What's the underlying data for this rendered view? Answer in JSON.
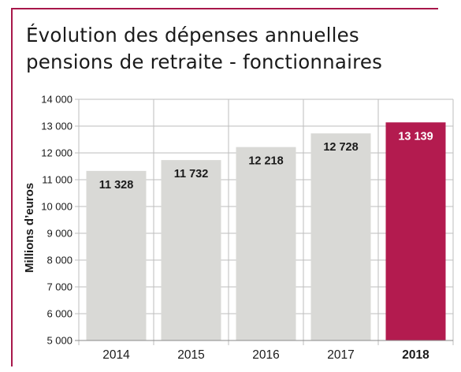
{
  "title": {
    "line1": "Évolution des dépenses annuelles",
    "line2": "pensions de retraite - fonctionnaires"
  },
  "colors": {
    "frame": "#a8174a",
    "bar_default": "#d9d9d6",
    "bar_highlight": "#b31b4f",
    "grid": "#bdbdbd",
    "text": "#1a1a1a"
  },
  "chart_data": {
    "type": "bar",
    "title": "Évolution des dépenses annuelles pensions de retraite - fonctionnaires",
    "categories": [
      "2014",
      "2015",
      "2016",
      "2017",
      "2018"
    ],
    "values": [
      11328,
      11732,
      12218,
      12728,
      13139
    ],
    "value_labels": [
      "11 328",
      "11 732",
      "12 218",
      "12 728",
      "13 139"
    ],
    "highlight_category": "2018",
    "xlabel": "",
    "ylabel": "Millions d’euros",
    "ylim": [
      5000,
      14000
    ],
    "yticks": [
      5000,
      6000,
      7000,
      8000,
      9000,
      10000,
      11000,
      12000,
      13000,
      14000
    ],
    "ytick_labels": [
      "5 000",
      "6 000",
      "7 000",
      "8 000",
      "9 000",
      "10 000",
      "11 000",
      "12 000",
      "13 000",
      "14 000"
    ],
    "grid": true
  }
}
